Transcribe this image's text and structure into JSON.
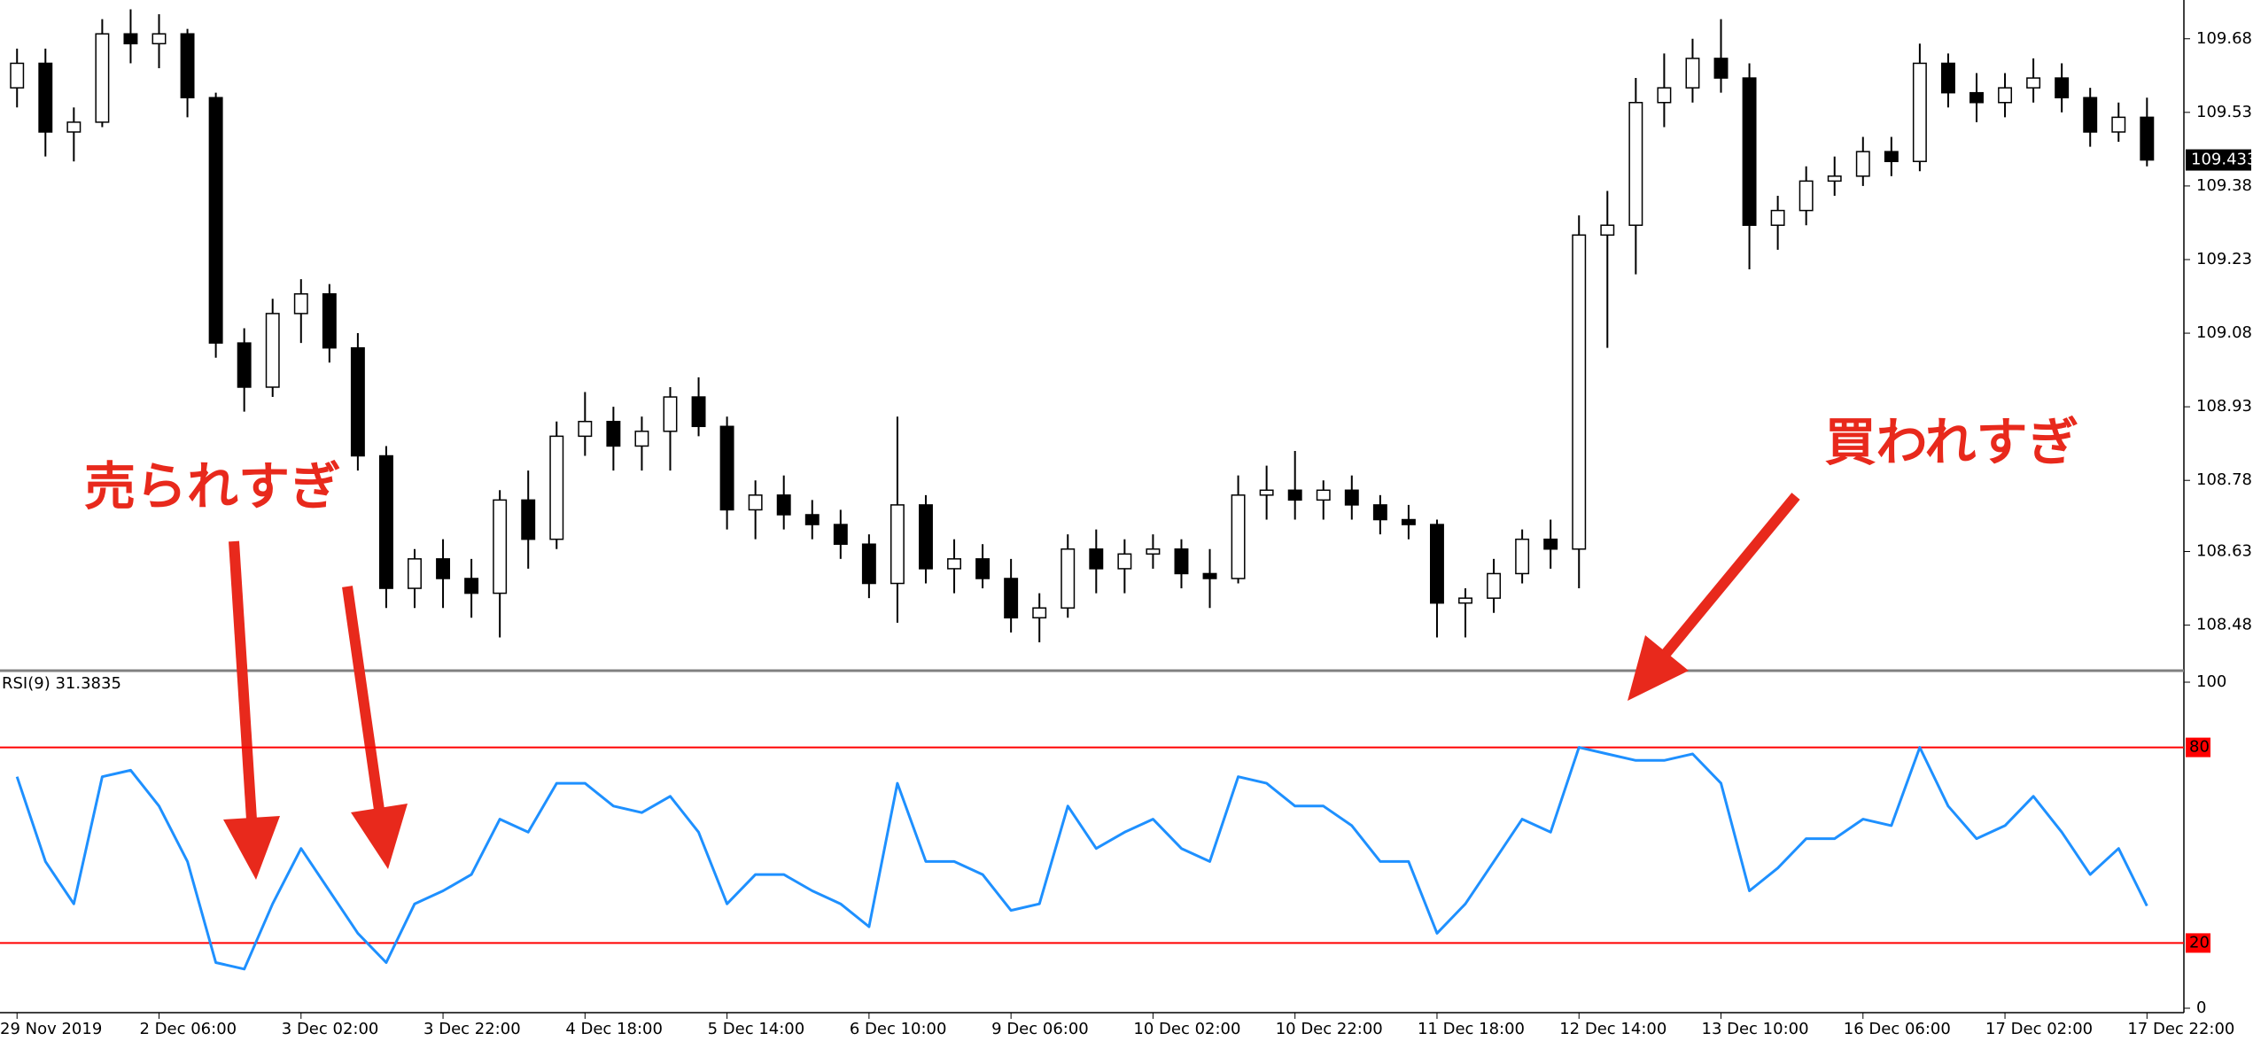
{
  "chart_data": [
    {
      "type": "candlestick",
      "xlim": [
        -0.6,
        76.3
      ],
      "ylim": [
        108.394,
        109.759
      ],
      "yticks": [
        {
          "value": 109.68,
          "label": "109.680"
        },
        {
          "value": 109.53,
          "label": "109.530"
        },
        {
          "value": 109.38,
          "label": "109.380"
        },
        {
          "value": 109.23,
          "label": "109.230"
        },
        {
          "value": 109.08,
          "label": "109.080"
        },
        {
          "value": 108.93,
          "label": "108.930"
        },
        {
          "value": 108.78,
          "label": "108.780"
        },
        108.635,
        108.485
      ],
      "current_price": 109.433,
      "up_color": "#ffffff",
      "down_color": "#000000",
      "annotations": [
        "売られすぎ",
        "買われすぎ"
      ],
      "open": [
        109.58,
        109.63,
        109.49,
        109.51,
        109.69,
        109.67,
        109.69,
        109.56,
        109.06,
        108.97,
        109.12,
        109.16,
        109.05,
        108.83,
        108.56,
        108.62,
        108.58,
        108.55,
        108.74,
        108.66,
        108.87,
        108.9,
        108.85,
        108.88,
        108.95,
        108.89,
        108.72,
        108.75,
        108.71,
        108.69,
        108.65,
        108.57,
        108.73,
        108.6,
        108.62,
        108.58,
        108.5,
        108.52,
        108.64,
        108.6,
        108.63,
        108.64,
        108.59,
        108.58,
        108.75,
        108.76,
        108.74,
        108.76,
        108.73,
        108.7,
        108.69,
        108.53,
        108.54,
        108.59,
        108.66,
        108.64,
        109.28,
        109.3,
        109.55,
        109.58,
        109.64,
        109.6,
        109.3,
        109.33,
        109.39,
        109.4,
        109.45,
        109.43,
        109.63,
        109.57,
        109.55,
        109.58,
        109.6,
        109.56,
        109.49,
        109.52
      ],
      "high": [
        109.66,
        109.66,
        109.54,
        109.72,
        109.74,
        109.73,
        109.7,
        109.57,
        109.09,
        109.15,
        109.19,
        109.18,
        109.08,
        108.85,
        108.64,
        108.66,
        108.62,
        108.76,
        108.8,
        108.9,
        108.96,
        108.93,
        108.91,
        108.97,
        108.99,
        108.91,
        108.78,
        108.79,
        108.74,
        108.72,
        108.67,
        108.91,
        108.75,
        108.66,
        108.65,
        108.62,
        108.55,
        108.67,
        108.68,
        108.66,
        108.67,
        108.66,
        108.64,
        108.79,
        108.81,
        108.84,
        108.78,
        108.79,
        108.75,
        108.73,
        108.7,
        108.56,
        108.62,
        108.68,
        108.7,
        109.32,
        109.37,
        109.6,
        109.65,
        109.68,
        109.72,
        109.63,
        109.36,
        109.42,
        109.44,
        109.48,
        109.48,
        109.67,
        109.65,
        109.61,
        109.61,
        109.64,
        109.63,
        109.58,
        109.55,
        109.56
      ],
      "low": [
        109.54,
        109.44,
        109.43,
        109.5,
        109.63,
        109.62,
        109.52,
        109.03,
        108.92,
        108.95,
        109.06,
        109.02,
        108.8,
        108.52,
        108.52,
        108.52,
        108.5,
        108.46,
        108.6,
        108.64,
        108.83,
        108.8,
        108.8,
        108.8,
        108.87,
        108.68,
        108.66,
        108.68,
        108.66,
        108.62,
        108.54,
        108.49,
        108.57,
        108.55,
        108.56,
        108.47,
        108.45,
        108.5,
        108.55,
        108.55,
        108.6,
        108.56,
        108.52,
        108.57,
        108.7,
        108.7,
        108.7,
        108.7,
        108.67,
        108.66,
        108.46,
        108.46,
        108.51,
        108.57,
        108.6,
        108.56,
        109.05,
        109.2,
        109.5,
        109.55,
        109.57,
        109.21,
        109.25,
        109.3,
        109.36,
        109.38,
        109.4,
        109.41,
        109.54,
        109.51,
        109.52,
        109.55,
        109.53,
        109.46,
        109.47,
        109.42
      ],
      "close": [
        109.63,
        109.49,
        109.51,
        109.69,
        109.67,
        109.69,
        109.56,
        109.06,
        108.97,
        109.12,
        109.16,
        109.05,
        108.83,
        108.56,
        108.62,
        108.58,
        108.55,
        108.74,
        108.66,
        108.87,
        108.9,
        108.85,
        108.88,
        108.95,
        108.89,
        108.72,
        108.75,
        108.71,
        108.69,
        108.65,
        108.57,
        108.73,
        108.6,
        108.62,
        108.58,
        108.5,
        108.52,
        108.64,
        108.6,
        108.63,
        108.64,
        108.59,
        108.58,
        108.75,
        108.76,
        108.74,
        108.76,
        108.73,
        108.7,
        108.69,
        108.53,
        108.54,
        108.59,
        108.66,
        108.64,
        109.28,
        109.3,
        109.55,
        109.58,
        109.64,
        109.6,
        109.3,
        109.33,
        109.39,
        109.4,
        109.45,
        109.43,
        109.63,
        109.57,
        109.55,
        109.58,
        109.6,
        109.56,
        109.49,
        109.52,
        109.433
      ]
    },
    {
      "type": "line",
      "title": "RSI(9) 31.3835",
      "color": "#1e90ff",
      "levels": [
        80,
        20
      ],
      "level_color": "#ff0000",
      "xlim": [
        -0.6,
        76.3
      ],
      "ylim": [
        0,
        100
      ],
      "yticks": [
        100,
        0
      ],
      "xticks": [
        {
          "value": 0,
          "label": "29 Nov 2019"
        },
        {
          "value": 5,
          "label": "2 Dec 06:00"
        },
        {
          "value": 10,
          "label": "3 Dec 02:00"
        },
        {
          "value": 15,
          "label": "3 Dec 22:00"
        },
        {
          "value": 20,
          "label": "4 Dec 18:00"
        },
        {
          "value": 25,
          "label": "5 Dec 14:00"
        },
        {
          "value": 30,
          "label": "6 Dec 10:00"
        },
        {
          "value": 35,
          "label": "9 Dec 06:00"
        },
        {
          "value": 40,
          "label": "10 Dec 02:00"
        },
        {
          "value": 45,
          "label": "10 Dec 22:00"
        },
        {
          "value": 50,
          "label": "11 Dec 18:00"
        },
        {
          "value": 55,
          "label": "12 Dec 14:00"
        },
        {
          "value": 60,
          "label": "13 Dec 10:00"
        },
        {
          "value": 65,
          "label": "16 Dec 06:00"
        },
        {
          "value": 70,
          "label": "17 Dec 02:00"
        },
        {
          "value": 75,
          "label": "17 Dec 22:00"
        }
      ],
      "values": [
        71,
        45,
        32,
        71,
        73,
        62,
        45,
        14,
        12,
        32,
        49,
        36,
        23,
        14,
        32,
        36,
        41,
        58,
        54,
        69,
        69,
        62,
        60,
        65,
        54,
        32,
        41,
        41,
        36,
        32,
        25,
        69,
        45,
        45,
        41,
        30,
        32,
        62,
        49,
        54,
        58,
        49,
        45,
        71,
        69,
        62,
        62,
        56,
        45,
        45,
        23,
        32,
        45,
        58,
        54,
        80,
        78,
        76,
        76,
        78,
        69,
        36,
        43,
        52,
        52,
        58,
        56,
        80,
        62,
        52,
        56,
        65,
        54,
        41,
        49,
        31.3835
      ]
    }
  ]
}
